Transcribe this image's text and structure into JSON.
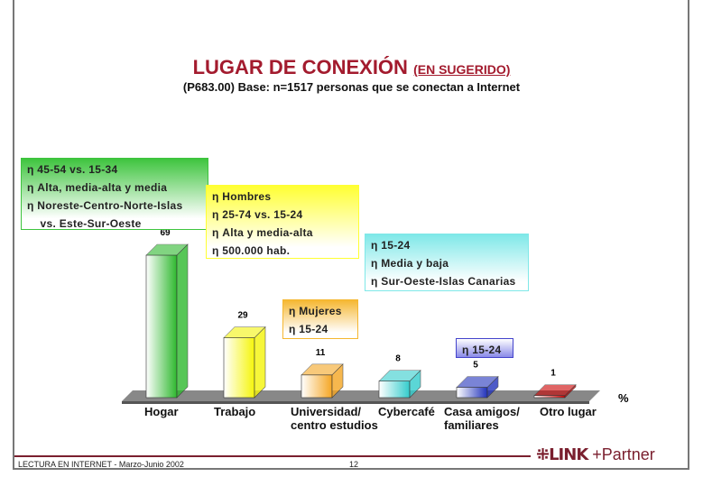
{
  "chart_data": {
    "type": "bar",
    "title": "LUGAR DE CONEXIÓN",
    "title_note": "(EN SUGERIDO)",
    "subtitle": "(P683.00) Base: n=1517 personas que se conectan a Internet",
    "ylabel": "%",
    "categories": [
      "Hogar",
      "Trabajo",
      "Universidad/ centro estudios",
      "Cybercafé",
      "Casa amigos/ familiares",
      "Otro lugar"
    ],
    "category_lines": [
      [
        "Hogar"
      ],
      [
        "Trabajo"
      ],
      [
        "Universidad/",
        "centro estudios"
      ],
      [
        "Cybercafé"
      ],
      [
        "Casa amigos/",
        "familiares"
      ],
      [
        "Otro lugar"
      ]
    ],
    "values": [
      69,
      29,
      11,
      8,
      5,
      1
    ],
    "colors": [
      "#2eb82e",
      "#f5f50a",
      "#f5a623",
      "#33cccc",
      "#2233bb",
      "#cc0000"
    ],
    "ylim": [
      0,
      75
    ],
    "annotations": [
      {
        "color": "#3ec43e",
        "lines": [
          "η 45-54 vs. 15-34",
          "η Alta, media-alta y media",
          "η Noreste-Centro-Norte-Islas",
          "    vs. Este-Sur-Oeste"
        ]
      },
      {
        "color": "#ffff33",
        "lines": [
          "η Hombres",
          "η 25-74 vs. 15-24",
          "η Alta y media-alta",
          "η 500.000 hab."
        ]
      },
      {
        "color": "#f5b731",
        "lines": [
          "η Mujeres",
          "η 15-24"
        ]
      },
      {
        "color": "#7fe8e8",
        "lines": [
          "η 15-24",
          "η Media y baja",
          "η Sur-Oeste-Islas Canarias"
        ]
      },
      {
        "color": "#4444cc",
        "lines": [
          "η 15-24"
        ]
      }
    ]
  },
  "footer": {
    "left": "LECTURA EN INTERNET - Marzo-Junio 2002",
    "page": "12",
    "logo": "LINK +Partner"
  }
}
